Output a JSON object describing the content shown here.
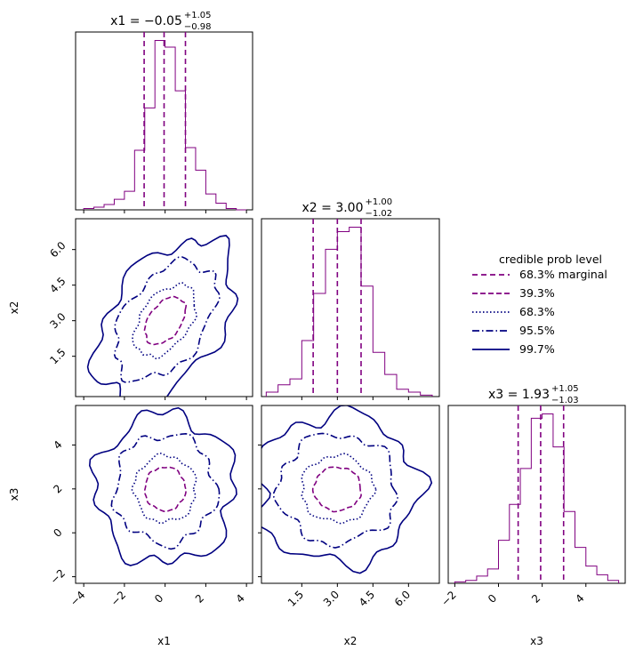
{
  "chart_data": {
    "type": "corner",
    "parameters": [
      {
        "name": "x1",
        "xlabel": "x1",
        "title": {
          "main": "x1 = −0.05",
          "sup": "+1.05",
          "sub": "−0.98"
        },
        "median": -0.05,
        "lower": -1.03,
        "upper": 1.0,
        "range": [
          -4.4,
          4.3
        ],
        "ticks": [
          -4,
          -2,
          0,
          2,
          4
        ],
        "tick_labels": [
          "−4",
          "−2",
          "0",
          "2",
          "4"
        ],
        "hist_edges": [
          -4.0,
          -3.5,
          -3.0,
          -2.5,
          -2.0,
          -1.5,
          -1.0,
          -0.5,
          0.0,
          0.5,
          1.0,
          1.5,
          2.0,
          2.5,
          3.0,
          3.5,
          4.0
        ],
        "hist_counts": [
          1,
          2,
          4,
          8,
          14,
          45,
          77,
          128,
          123,
          90,
          47,
          30,
          12,
          5,
          1,
          0
        ]
      },
      {
        "name": "x2",
        "xlabel": "x2",
        "ylabel": "x2",
        "title": {
          "main": "x2 = 3.00",
          "sup": "+1.00",
          "sub": "−1.02"
        },
        "median": 3.0,
        "lower": 1.98,
        "upper": 4.0,
        "range": [
          -0.2,
          7.3
        ],
        "ticks": [
          1.5,
          3.0,
          4.5,
          6.0
        ],
        "tick_labels": [
          "1.5",
          "3.0",
          "4.5",
          "6.0"
        ],
        "hist_edges": [
          0.0,
          0.5,
          1.0,
          1.5,
          2.0,
          2.5,
          3.0,
          3.5,
          4.0,
          4.5,
          5.0,
          5.5,
          6.0,
          6.5,
          7.0
        ],
        "hist_counts": [
          3,
          8,
          12,
          38,
          70,
          100,
          112,
          115,
          75,
          30,
          15,
          5,
          3,
          1
        ]
      },
      {
        "name": "x3",
        "xlabel": "x3",
        "ylabel": "x3",
        "title": {
          "main": "x3 = 1.93",
          "sup": "+1.05",
          "sub": "−1.03"
        },
        "median": 1.93,
        "lower": 0.9,
        "upper": 2.98,
        "range": [
          -2.3,
          5.8
        ],
        "ticks": [
          -2,
          0,
          2,
          4
        ],
        "tick_labels": [
          "−2",
          "0",
          "2",
          "4"
        ],
        "hist_edges": [
          -2.0,
          -1.5,
          -1.0,
          -0.5,
          0.0,
          0.5,
          1.0,
          1.5,
          2.0,
          2.5,
          3.0,
          3.5,
          4.0,
          4.5,
          5.0,
          5.5
        ],
        "hist_counts": [
          1,
          2,
          5,
          10,
          30,
          55,
          80,
          115,
          118,
          95,
          50,
          25,
          12,
          6,
          2
        ]
      }
    ],
    "pairs": [
      {
        "x": "x1",
        "y": "x2",
        "center": [
          0.0,
          3.0
        ],
        "sx": 1.0,
        "sy": 1.0,
        "rho": 0.45
      },
      {
        "x": "x1",
        "y": "x3",
        "center": [
          0.0,
          2.0
        ],
        "sx": 1.0,
        "sy": 1.0,
        "rho": 0.0
      },
      {
        "x": "x2",
        "y": "x3",
        "center": [
          3.0,
          2.0
        ],
        "sx": 1.0,
        "sy": 1.0,
        "rho": 0.0
      }
    ],
    "legend": {
      "title": "credible prob level",
      "position": "right",
      "entries": [
        {
          "label": "68.3% marginal",
          "color": "#800080",
          "dash": "6,4",
          "level": "marginal"
        },
        {
          "label": "39.3%",
          "color": "#800080",
          "dash": "6,3",
          "level": 0.393
        },
        {
          "label": "68.3%",
          "color": "#000080",
          "dash": "1.5,2.5",
          "level": 0.683
        },
        {
          "label": "95.5%",
          "color": "#000080",
          "dash": "8,3,1.5,3",
          "level": 0.955
        },
        {
          "label": "99.7%",
          "color": "#000080",
          "dash": "",
          "level": 0.997
        }
      ]
    },
    "colors": {
      "marginal": "#800080",
      "contour": "#000080",
      "hist": "#800080"
    }
  }
}
